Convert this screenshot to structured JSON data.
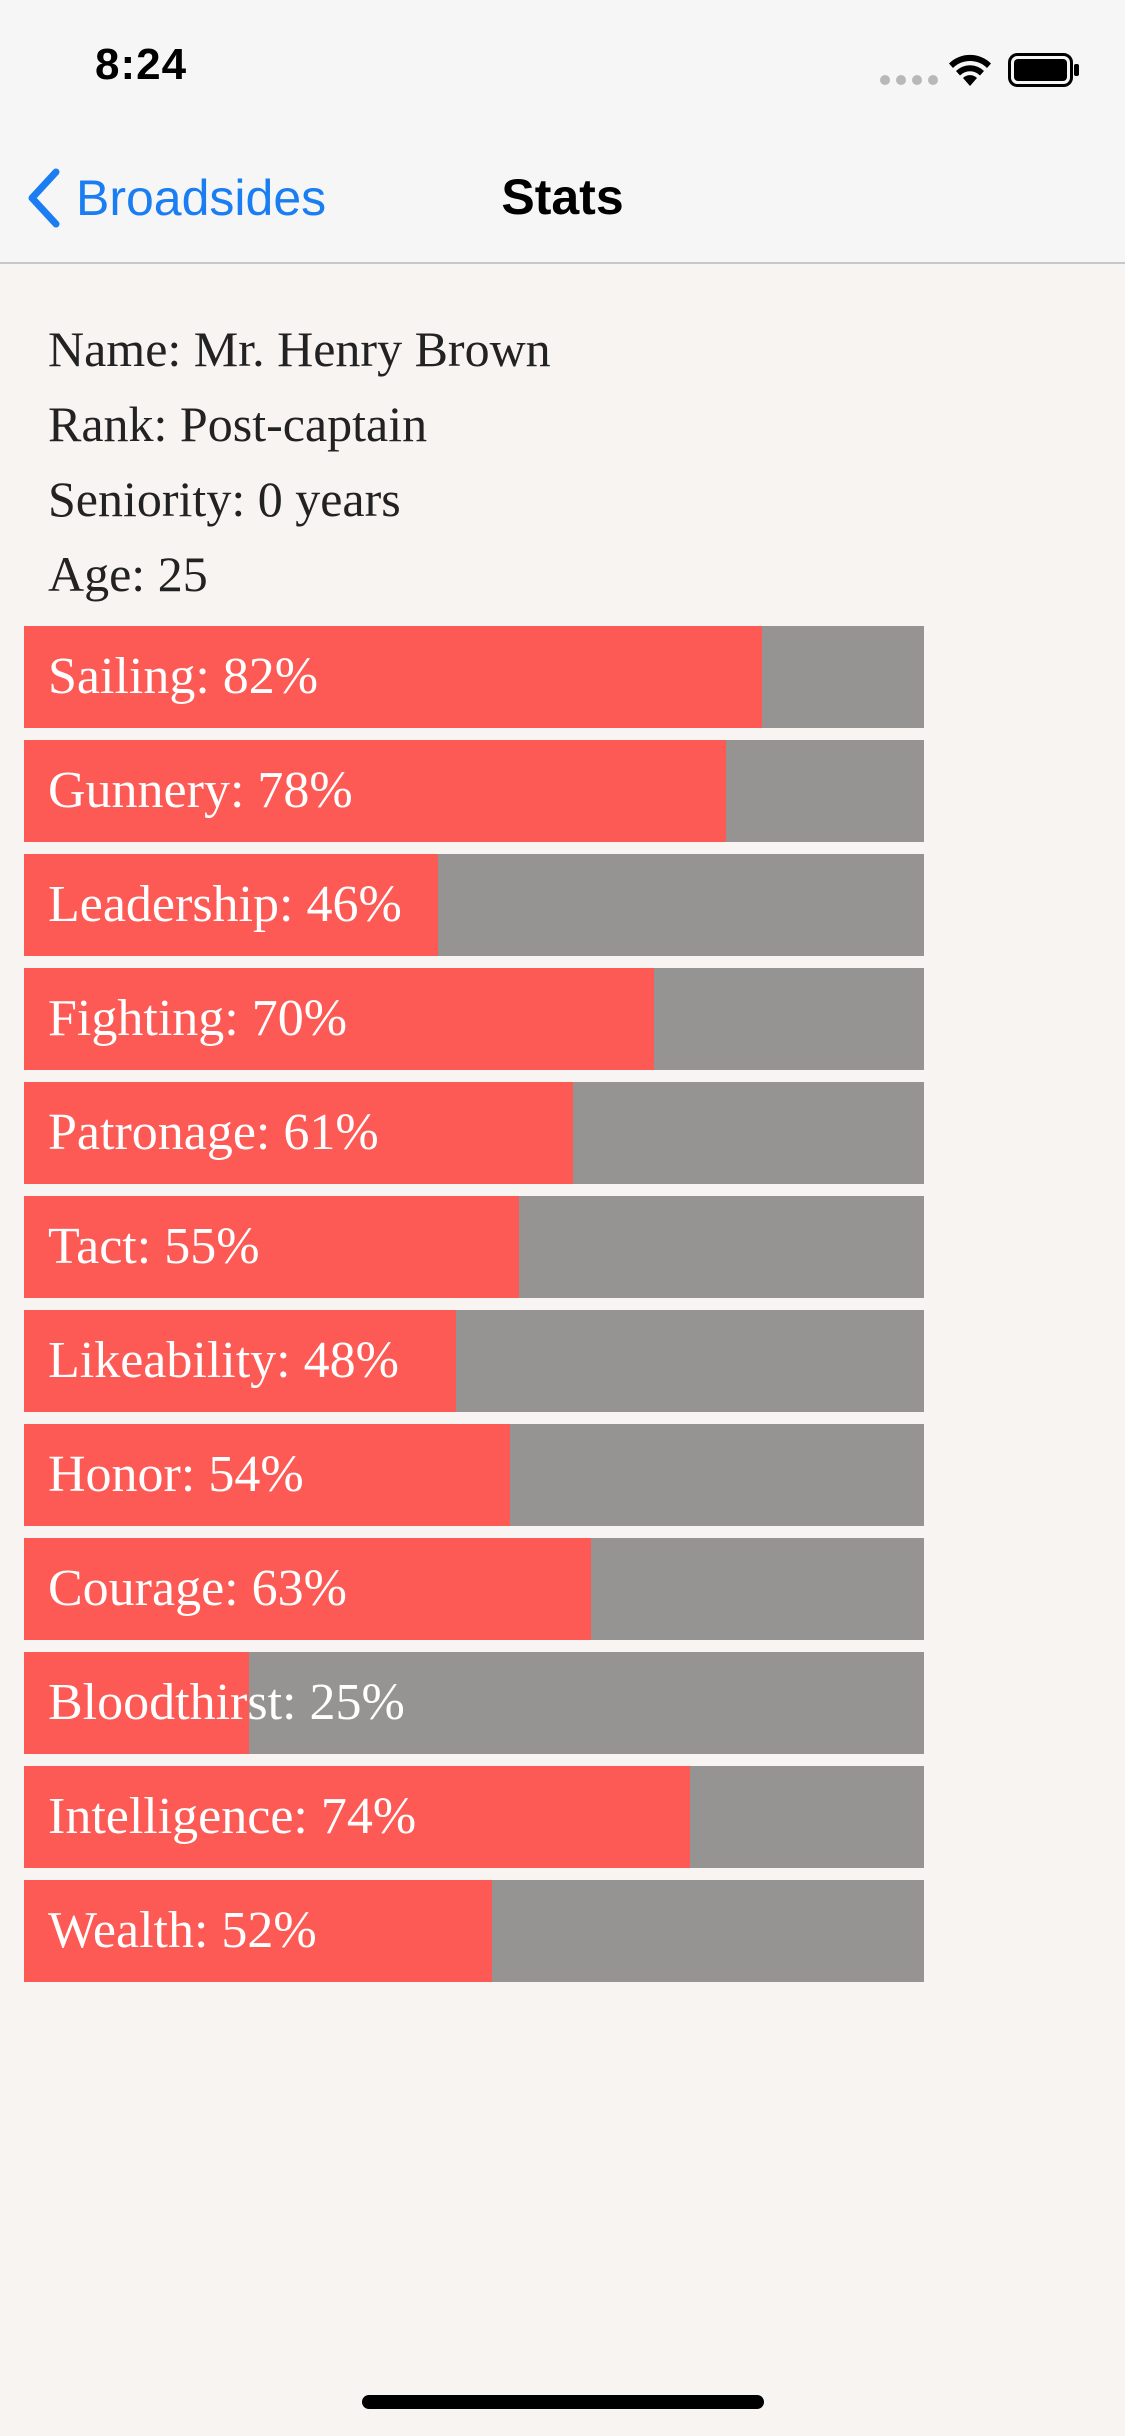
{
  "status_bar": {
    "time": "8:24"
  },
  "nav": {
    "back_label": "Broadsides",
    "title": "Stats",
    "accent_color": "#1a7df1"
  },
  "officer": {
    "name": "Name: Mr. Henry Brown",
    "rank": "Rank: Post-captain",
    "seniority": "Seniority: 0 years",
    "age": "Age: 25"
  },
  "colors": {
    "bar_fill": "#fe5a55",
    "bar_track": "#959492",
    "background": "#f7f4f2"
  },
  "stats": [
    {
      "label": "Sailing: 82%",
      "percent": 82
    },
    {
      "label": "Gunnery: 78%",
      "percent": 78
    },
    {
      "label": "Leadership: 46%",
      "percent": 46
    },
    {
      "label": "Fighting: 70%",
      "percent": 70
    },
    {
      "label": "Patronage: 61%",
      "percent": 61
    },
    {
      "label": "Tact: 55%",
      "percent": 55
    },
    {
      "label": "Likeability: 48%",
      "percent": 48
    },
    {
      "label": "Honor: 54%",
      "percent": 54
    },
    {
      "label": "Courage: 63%",
      "percent": 63
    },
    {
      "label": "Bloodthirst: 25%",
      "percent": 25
    },
    {
      "label": "Intelligence: 74%",
      "percent": 74
    },
    {
      "label": "Wealth: 52%",
      "percent": 52
    }
  ]
}
